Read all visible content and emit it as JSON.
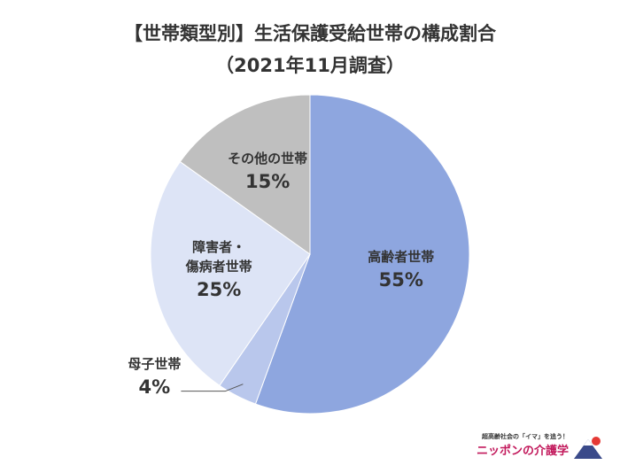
{
  "chart_data": {
    "type": "pie",
    "title": "【世帯類型別】生活保護受給世帯の構成割合",
    "subtitle": "（2021年11月調査）",
    "categories": [
      "高齢者世帯",
      "母子世帯",
      "障害者・\n傷病者世帯",
      "その他の世帯"
    ],
    "values": [
      55,
      4,
      25,
      15
    ],
    "value_labels": [
      "55%",
      "4%",
      "25%",
      "15%"
    ],
    "colors": [
      "#8ea6df",
      "#b9c7ec",
      "#dde4f6",
      "#bfbfbf"
    ]
  },
  "logo": {
    "tagline": "超高齢社会の「イマ」を追う！",
    "name": "ニッポンの介護学"
  }
}
